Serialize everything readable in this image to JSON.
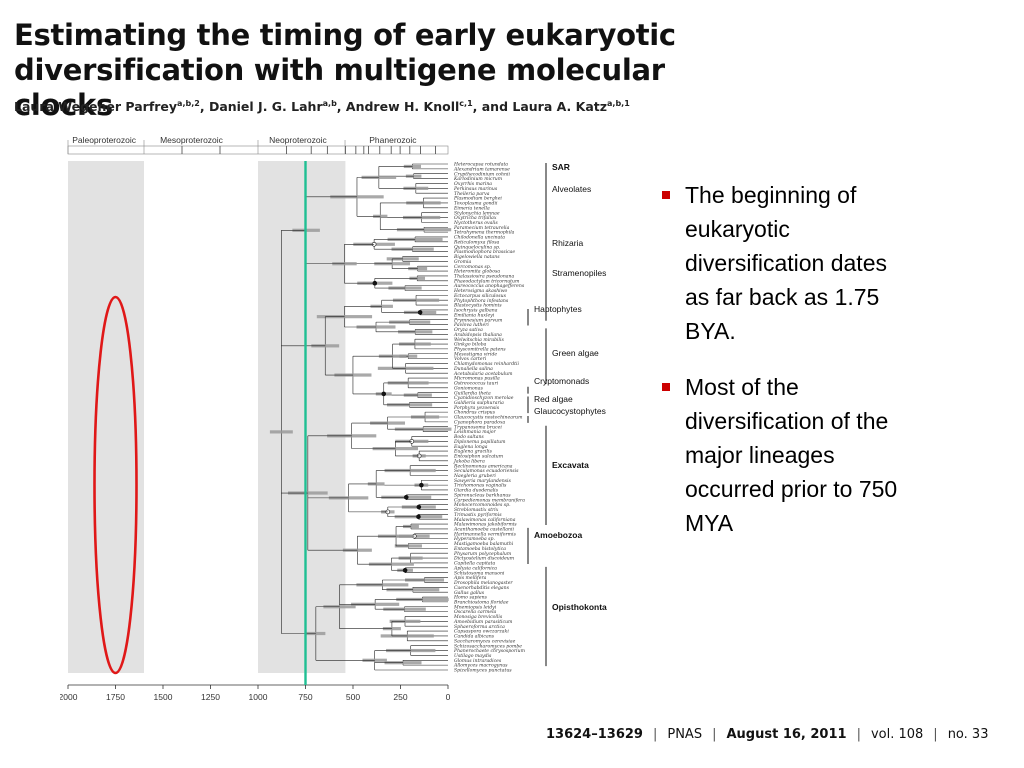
{
  "title": "Estimating the timing of early eukaryotic diversification with multigene molecular clocks",
  "authors": [
    {
      "name": "Laura Wegener Parfrey",
      "aff": "a,b,2",
      "after": ", "
    },
    {
      "name": "Daniel J. G. Lahr",
      "aff": "a,b",
      "after": ", "
    },
    {
      "name": "Andrew H. Knoll",
      "aff": "c,1",
      "after": ", and "
    },
    {
      "name": "Laura A. Katz",
      "aff": "a,b,1",
      "after": ""
    }
  ],
  "figure": {
    "eras": [
      "Paleoproterozoic",
      "Mesoproterozoic",
      "Neoproterozoic",
      "Phanerozoic"
    ],
    "axis_ticks": [
      "2000",
      "1750",
      "1500",
      "1250",
      "1000",
      "750",
      "500",
      "250",
      "0"
    ],
    "marker_line_mya": 750,
    "colors": {
      "marker_line": "#1fbf93",
      "highlight_ellipse": "#e01818",
      "shaded_band": "#e2e2e2"
    },
    "clades": [
      {
        "label": "SAR",
        "bold": true
      },
      {
        "label": "Alveolates",
        "bold": false
      },
      {
        "label": "Rhizaria",
        "bold": false
      },
      {
        "label": "Stramenopiles",
        "bold": false
      },
      {
        "label": "Haptophytes",
        "bold": false
      },
      {
        "label": "Green algae",
        "bold": false
      },
      {
        "label": "Cryptomonads",
        "bold": false
      },
      {
        "label": "Red algae",
        "bold": false
      },
      {
        "label": "Glaucocystophytes",
        "bold": false
      },
      {
        "label": "Excavata",
        "bold": true
      },
      {
        "label": "Amoebozoa",
        "bold": true
      },
      {
        "label": "Opisthokonta",
        "bold": true
      }
    ],
    "taxa": [
      "Heterocapsa rotundata",
      "Alexandrium tamarense",
      "Crypthecodinium cohnii",
      "Karlodinium micrum",
      "Oxyrrhis marina",
      "Perkinsus marinus",
      "Theileria parva",
      "Plasmodium berghei",
      "Toxoplasma gondii",
      "Eimeria tenella",
      "Stylonychia lemnae",
      "Oxytricha trifallax",
      "Nyctotherus ovalis",
      "Paramecium tetraurelia",
      "Tetrahymena thermophila",
      "Chilodonella uncinata",
      "Reticulomyxa filosa",
      "Quinqueloculina sp.",
      "Plasmodiophora brassicae",
      "Bigelowiella natans",
      "Gromia",
      "Cercomonas sp.",
      "Heteromita globosa",
      "Thalassiosira pseudonana",
      "Phaeodactylum tricornutum",
      "Aureococcus anophagefferens",
      "Heterosigma akashiwo",
      "Ectocarpus siliculosus",
      "Phytophthora infestans",
      "Blastocystis hominis",
      "Isochrysis galbana",
      "Emiliania huxleyi",
      "Prymnesium parvum",
      "Pavlova lutheri",
      "Oryza sativa",
      "Arabidopsis thaliana",
      "Welwitschia mirabilis",
      "Ginkgo biloba",
      "Physcomitrella patens",
      "Mesostigma viride",
      "Volvox carteri",
      "Chlamydomonas reinhardtii",
      "Dunaliella salina",
      "Acetabularia acetabulum",
      "Micromonas pusilla",
      "Ostreococcus tauri",
      "Goniomonas",
      "Guillardia theta",
      "Cyanidioschyzon merolae",
      "Galdieria sulphuraria",
      "Porphyra yezoensis",
      "Chondrus crispus",
      "Glaucocystis nostochinearum",
      "Cyanophora paradoxa",
      "Trypanosoma brucei",
      "Leishmania major",
      "Bodo saltans",
      "Diplonema papillatum",
      "Euglena longa",
      "Euglena gracilis",
      "Entosiphon sulcatum",
      "Jakoba libera",
      "Reclinomonas americana",
      "Seculamonas ecuadoriensis",
      "Naegleria gruberi",
      "Sawyeria marylandensis",
      "Trichomonas vaginalis",
      "Giardia duodenalis",
      "Spironucleus barkhanus",
      "Carpediemonas membranifera",
      "Monocercomonoides sp.",
      "Streblomastix strix",
      "Trimastix pyriformis",
      "Malawimonas californiana",
      "Malawimonas jakobiformis",
      "Acanthamoeba castellanii",
      "Hartmannella vermiformis",
      "Hyperamoeba sp.",
      "Mastigamoeba balamuthi",
      "Entamoeba histolytica",
      "Physarum polycephalum",
      "Dictyostelium discoideum",
      "Capitella capitata",
      "Aplysia californica",
      "Schistosoma mansoni",
      "Apis mellifera",
      "Drosophila melanogaster",
      "Caenorhabditis elegans",
      "Gallus gallus",
      "Homo sapiens",
      "Branchiostoma floridae",
      "Mnemiopsis leidyi",
      "Oscarella carmela",
      "Monosiga brevicollis",
      "Amoebidium parasiticum",
      "Sphaeroforma arctica",
      "Capsaspora owczarzaki",
      "Candida albicans",
      "Saccharomyces cerevisiae",
      "Schizosaccharomyces pombe",
      "Phanerochaete chrysosporium",
      "Ustilago maydis",
      "Glomus intraradices",
      "Allomyces macrogynus",
      "Spizellomyces punctatus"
    ]
  },
  "bullets": [
    "The beginning of eukaryotic diversification dates as far back as 1.75 BYA.",
    "Most of the diversification of the major lineages occurred prior to 750 MYA"
  ],
  "footer": {
    "pages": "13624–13629",
    "journal": "PNAS",
    "date": "August 16, 2011",
    "volume": "vol. 108",
    "issue": "no. 33"
  }
}
